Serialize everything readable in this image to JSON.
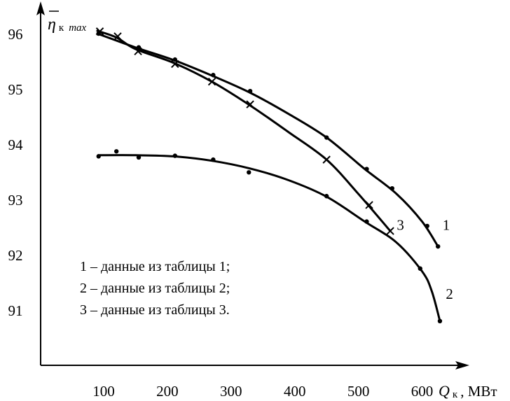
{
  "chart_data": {
    "type": "line",
    "y_axis_label": {
      "symbol": "η",
      "subscript": "к",
      "subscript_italic": "max"
    },
    "x_axis_label": {
      "symbol": "Q",
      "subscript": "к",
      "unit": ", МВт"
    },
    "xlim": [
      50,
      660
    ],
    "ylim": [
      90,
      96.3
    ],
    "x_ticks": [
      "100",
      "200",
      "300",
      "400",
      "500",
      "600"
    ],
    "x_tick_values": [
      100,
      200,
      300,
      400,
      500,
      600
    ],
    "y_ticks": [
      "96",
      "95",
      "94",
      "93",
      "92",
      "91"
    ],
    "y_tick_values": [
      96,
      95,
      94,
      93,
      92,
      91
    ],
    "series": [
      {
        "name": "1",
        "marker": "dot",
        "curve": [
          [
            90,
            96.0
          ],
          [
            150,
            95.75
          ],
          [
            210,
            95.52
          ],
          [
            270,
            95.24
          ],
          [
            330,
            94.93
          ],
          [
            390,
            94.55
          ],
          [
            450,
            94.12
          ],
          [
            510,
            93.55
          ],
          [
            560,
            93.1
          ],
          [
            600,
            92.6
          ],
          [
            625,
            92.15
          ]
        ],
        "points": [
          [
            92,
            96.0
          ],
          [
            155,
            95.75
          ],
          [
            212,
            95.53
          ],
          [
            272,
            95.25
          ],
          [
            330,
            94.96
          ],
          [
            450,
            94.12
          ],
          [
            513,
            93.55
          ],
          [
            553,
            93.2
          ],
          [
            608,
            92.52
          ],
          [
            625,
            92.15
          ]
        ]
      },
      {
        "name": "2",
        "marker": "dot",
        "curve": [
          [
            92,
            93.8
          ],
          [
            150,
            93.8
          ],
          [
            210,
            93.78
          ],
          [
            270,
            93.7
          ],
          [
            330,
            93.56
          ],
          [
            390,
            93.35
          ],
          [
            450,
            93.05
          ],
          [
            510,
            92.6
          ],
          [
            560,
            92.22
          ],
          [
            600,
            91.7
          ],
          [
            615,
            91.35
          ],
          [
            628,
            90.8
          ]
        ],
        "points": [
          [
            92,
            93.78
          ],
          [
            120,
            93.87
          ],
          [
            155,
            93.76
          ],
          [
            212,
            93.79
          ],
          [
            272,
            93.72
          ],
          [
            328,
            93.49
          ],
          [
            450,
            93.06
          ],
          [
            513,
            92.6
          ],
          [
            597,
            91.75
          ],
          [
            628,
            90.8
          ]
        ]
      },
      {
        "name": "3",
        "marker": "cross",
        "curve": [
          [
            90,
            96.05
          ],
          [
            120,
            95.93
          ],
          [
            150,
            95.72
          ],
          [
            210,
            95.47
          ],
          [
            270,
            95.13
          ],
          [
            330,
            94.7
          ],
          [
            390,
            94.22
          ],
          [
            450,
            93.72
          ],
          [
            500,
            93.1
          ],
          [
            550,
            92.43
          ]
        ],
        "points": [
          [
            94,
            96.04
          ],
          [
            122,
            95.95
          ],
          [
            154,
            95.68
          ],
          [
            212,
            95.45
          ],
          [
            270,
            95.13
          ],
          [
            330,
            94.72
          ],
          [
            450,
            93.72
          ],
          [
            517,
            92.9
          ],
          [
            550,
            92.43
          ]
        ]
      }
    ],
    "curve_labels": [
      {
        "text": "1",
        "x": 638,
        "y": 92.45
      },
      {
        "text": "2",
        "x": 643,
        "y": 91.2
      },
      {
        "text": "3",
        "x": 566,
        "y": 92.45
      }
    ],
    "legend": {
      "position": "bottom-left",
      "items": [
        "1 – данные из таблицы 1;",
        "2 – данные из таблицы 2;",
        "3 – данные из таблицы 3."
      ]
    }
  }
}
